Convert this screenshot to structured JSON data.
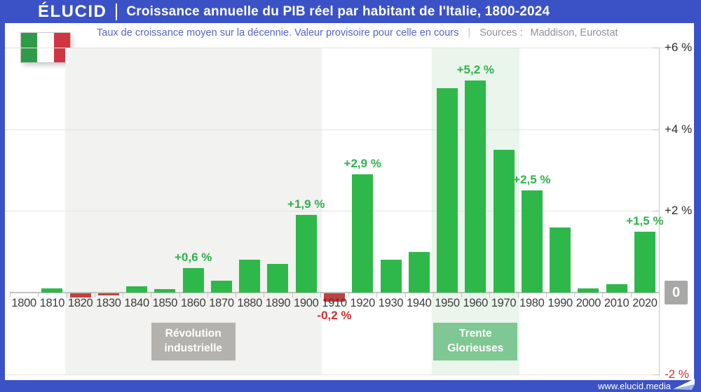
{
  "header": {
    "brand": "ÉLUCID",
    "title": "Croissance annuelle du PIB réel par habitant de l'Italie, 1800-2024"
  },
  "subtitle": {
    "note": "Taux de croissance moyen sur la décennie. Valeur provisoire pour celle en cours",
    "separator": "|",
    "sources_label": "Sources :",
    "sources": "Maddison, Eurostat"
  },
  "flag": {
    "country": "Italie",
    "colors": [
      "#2f9a48",
      "#ffffff",
      "#cf3642"
    ]
  },
  "footer": {
    "url": "www.elucid.media"
  },
  "chart_data": {
    "type": "bar",
    "title": "Croissance annuelle du PIB réel par habitant de l'Italie, 1800-2024",
    "xlabel": "",
    "ylabel": "Taux de croissance moyen sur la décennie (%)",
    "unit": "%",
    "categories": [
      "1800",
      "1810",
      "1820",
      "1830",
      "1840",
      "1850",
      "1860",
      "1870",
      "1880",
      "1890",
      "1900",
      "1910",
      "1920",
      "1930",
      "1940",
      "1950",
      "1960",
      "1970",
      "1980",
      "1990",
      "2000",
      "2010",
      "2020"
    ],
    "values": [
      0,
      0.1,
      -0.1,
      -0.05,
      0.15,
      0.08,
      0.6,
      0.3,
      0.8,
      0.7,
      1.9,
      -0.2,
      2.9,
      0.8,
      1.0,
      5.0,
      5.2,
      3.5,
      2.5,
      1.6,
      0.1,
      0.2,
      1.5
    ],
    "ylim": [
      -2,
      6
    ],
    "grid": true,
    "legend": false,
    "y_axis_position": "right",
    "yticks": [
      {
        "value": 6,
        "label": "+6 %"
      },
      {
        "value": 4,
        "label": "+4 %"
      },
      {
        "value": 2,
        "label": "+2 %"
      },
      {
        "value": 0,
        "label": "0"
      },
      {
        "value": -2,
        "label": "-2 %",
        "negative": true
      }
    ],
    "annotations": [
      {
        "category": "1860",
        "index": 6,
        "text": "+0,6 %",
        "placement": "above"
      },
      {
        "category": "1900",
        "index": 10,
        "text": "+1,9 %",
        "placement": "above"
      },
      {
        "category": "1910",
        "index": 11,
        "text": "-0,2 %",
        "placement": "below",
        "negative": true
      },
      {
        "category": "1920",
        "index": 12,
        "text": "+2,9 %",
        "placement": "above"
      },
      {
        "category": "1960",
        "index": 16,
        "text": "+5,2 %",
        "placement": "above"
      },
      {
        "category": "1980",
        "index": 18,
        "text": "+2,5 %",
        "placement": "above"
      },
      {
        "category": "2020",
        "index": 22,
        "text": "+1,5 %",
        "placement": "above"
      }
    ],
    "bands": [
      {
        "label": "Révolution industrielle",
        "from_category": "1820",
        "to_category": "1900",
        "from_index": 2,
        "to_index": 10,
        "fill": "#f2f2f0",
        "label_bg": "#b4b2af"
      },
      {
        "label": "Trente Glorieuses",
        "from_category": "1950",
        "to_category": "1970",
        "from_index": 15,
        "to_index": 17,
        "fill": "#eaf5ec",
        "label_bg": "#7fc893"
      }
    ],
    "colors": {
      "positive": "#2eb84a",
      "negative": "#bf4140",
      "annotation_positive": "#2eb14b",
      "annotation_negative": "#d02e2e",
      "frame_blue": "#3b52c6"
    }
  }
}
